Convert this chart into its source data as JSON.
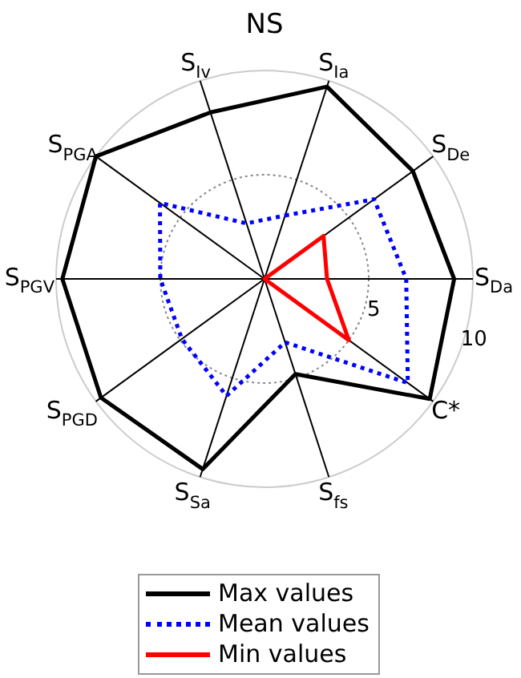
{
  "chart_data": {
    "type": "radar",
    "title": "NS",
    "categories": [
      "S$_{Ia}$",
      "S$_{De}$",
      "S$_{Da}$",
      "C*",
      "S$_{fs}$",
      "S$_{Sa}$",
      "S$_{PGD}$",
      "S$_{PGV}$",
      "S$_{PGA}$",
      "S$_{Iv}$"
    ],
    "ylim": [
      0,
      10
    ],
    "yticks": [
      5,
      10
    ],
    "grid": true,
    "legend": "bottom",
    "marker": "none",
    "series": [
      {
        "name": "Max values",
        "color": "#000000",
        "line_style": "solid",
        "values": [
          9.7,
          8.8,
          9.1,
          9.8,
          4.8,
          9.6,
          9.7,
          9.7,
          10,
          8.4
        ]
      },
      {
        "name": "Mean values",
        "color": "#0000ff",
        "line_style": "dotted",
        "values": [
          3.2,
          6.5,
          6.8,
          8.5,
          3.2,
          5.9,
          4.9,
          5.0,
          6.2,
          2.8
        ]
      },
      {
        "name": "Min values",
        "color": "#ff0000",
        "line_style": "solid",
        "values": [
          0,
          3.5,
          3.0,
          5.0,
          0,
          0,
          0,
          0,
          0,
          0
        ]
      }
    ]
  }
}
